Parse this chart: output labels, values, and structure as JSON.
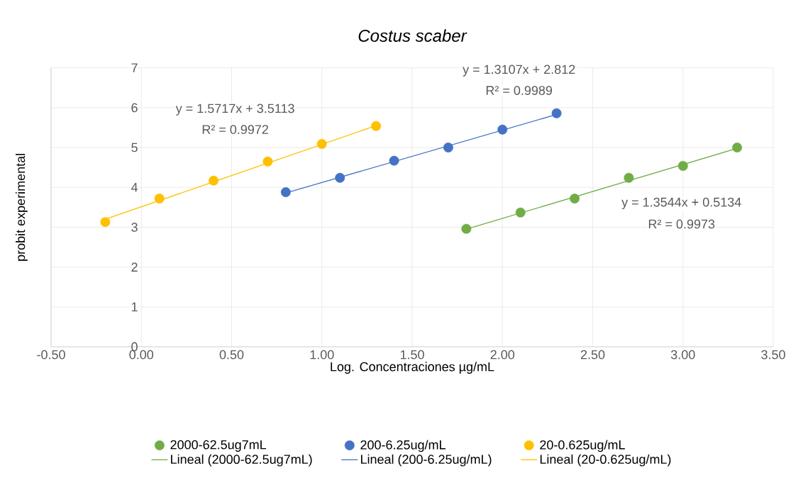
{
  "chart_data": {
    "type": "scatter",
    "title": "Costus scaber",
    "xlabel": "Log. Concentraciones µg/mL",
    "ylabel": "probit experimental",
    "xlim": [
      -0.5,
      3.5
    ],
    "ylim": [
      0,
      7
    ],
    "xticks": [
      {
        "value": -0.5,
        "label": "-0.50"
      },
      {
        "value": 0,
        "label": "0.00"
      },
      {
        "value": 0.5,
        "label": "0.50"
      },
      {
        "value": 1,
        "label": "1.00"
      },
      {
        "value": 1.5,
        "label": "1.50"
      },
      {
        "value": 2,
        "label": "2.00"
      },
      {
        "value": 2.5,
        "label": "2.50"
      },
      {
        "value": 3,
        "label": "3.00"
      },
      {
        "value": 3.5,
        "label": "3.50"
      }
    ],
    "yticks": [
      0,
      1,
      2,
      3,
      4,
      5,
      6,
      7
    ],
    "grid": true,
    "legend": "bottom",
    "series": [
      {
        "name": "2000-62.5ug7mL",
        "marker": "circle",
        "color": "#70ad47",
        "x": [
          1.8,
          2.1,
          2.4,
          2.7,
          3.0,
          3.3
        ],
        "values": [
          2.96,
          3.37,
          3.72,
          4.24,
          4.54,
          5.0
        ]
      },
      {
        "name": "200-6.25ug/mL",
        "marker": "circle",
        "color": "#4472c4",
        "x": [
          0.8,
          1.1,
          1.4,
          1.7,
          2.0,
          2.3
        ],
        "values": [
          3.88,
          4.24,
          4.67,
          5.0,
          5.45,
          5.86
        ]
      },
      {
        "name": "20-0.625ug/mL",
        "marker": "circle",
        "color": "#ffc000",
        "x": [
          -0.2,
          0.1,
          0.4,
          0.7,
          1.0,
          1.3
        ],
        "values": [
          3.13,
          3.72,
          4.17,
          4.65,
          5.09,
          5.54
        ]
      },
      {
        "name": "Lineal (2000-62.5ug7mL)",
        "type": "line",
        "marker": "none",
        "color": "#70ad47",
        "x": [
          1.8,
          3.3
        ],
        "values": [
          2.95,
          4.98
        ]
      },
      {
        "name": "Lineal (200-6.25ug/mL)",
        "type": "line",
        "marker": "none",
        "color": "#4472c4",
        "x": [
          0.8,
          2.3
        ],
        "values": [
          3.86,
          5.83
        ]
      },
      {
        "name": "Lineal (20-0.625ug/mL)",
        "type": "line",
        "marker": "none",
        "color": "#ffc000",
        "x": [
          -0.2,
          1.3
        ],
        "values": [
          3.2,
          5.55
        ]
      }
    ],
    "annotations": [
      "y = 1.3544x + 0.5134",
      "R² = 0.9973",
      "y = 1.3107x + 2.812",
      "R² = 0.9989",
      "y = 1.5717x + 3.5113",
      "R² = 0.9972"
    ]
  }
}
